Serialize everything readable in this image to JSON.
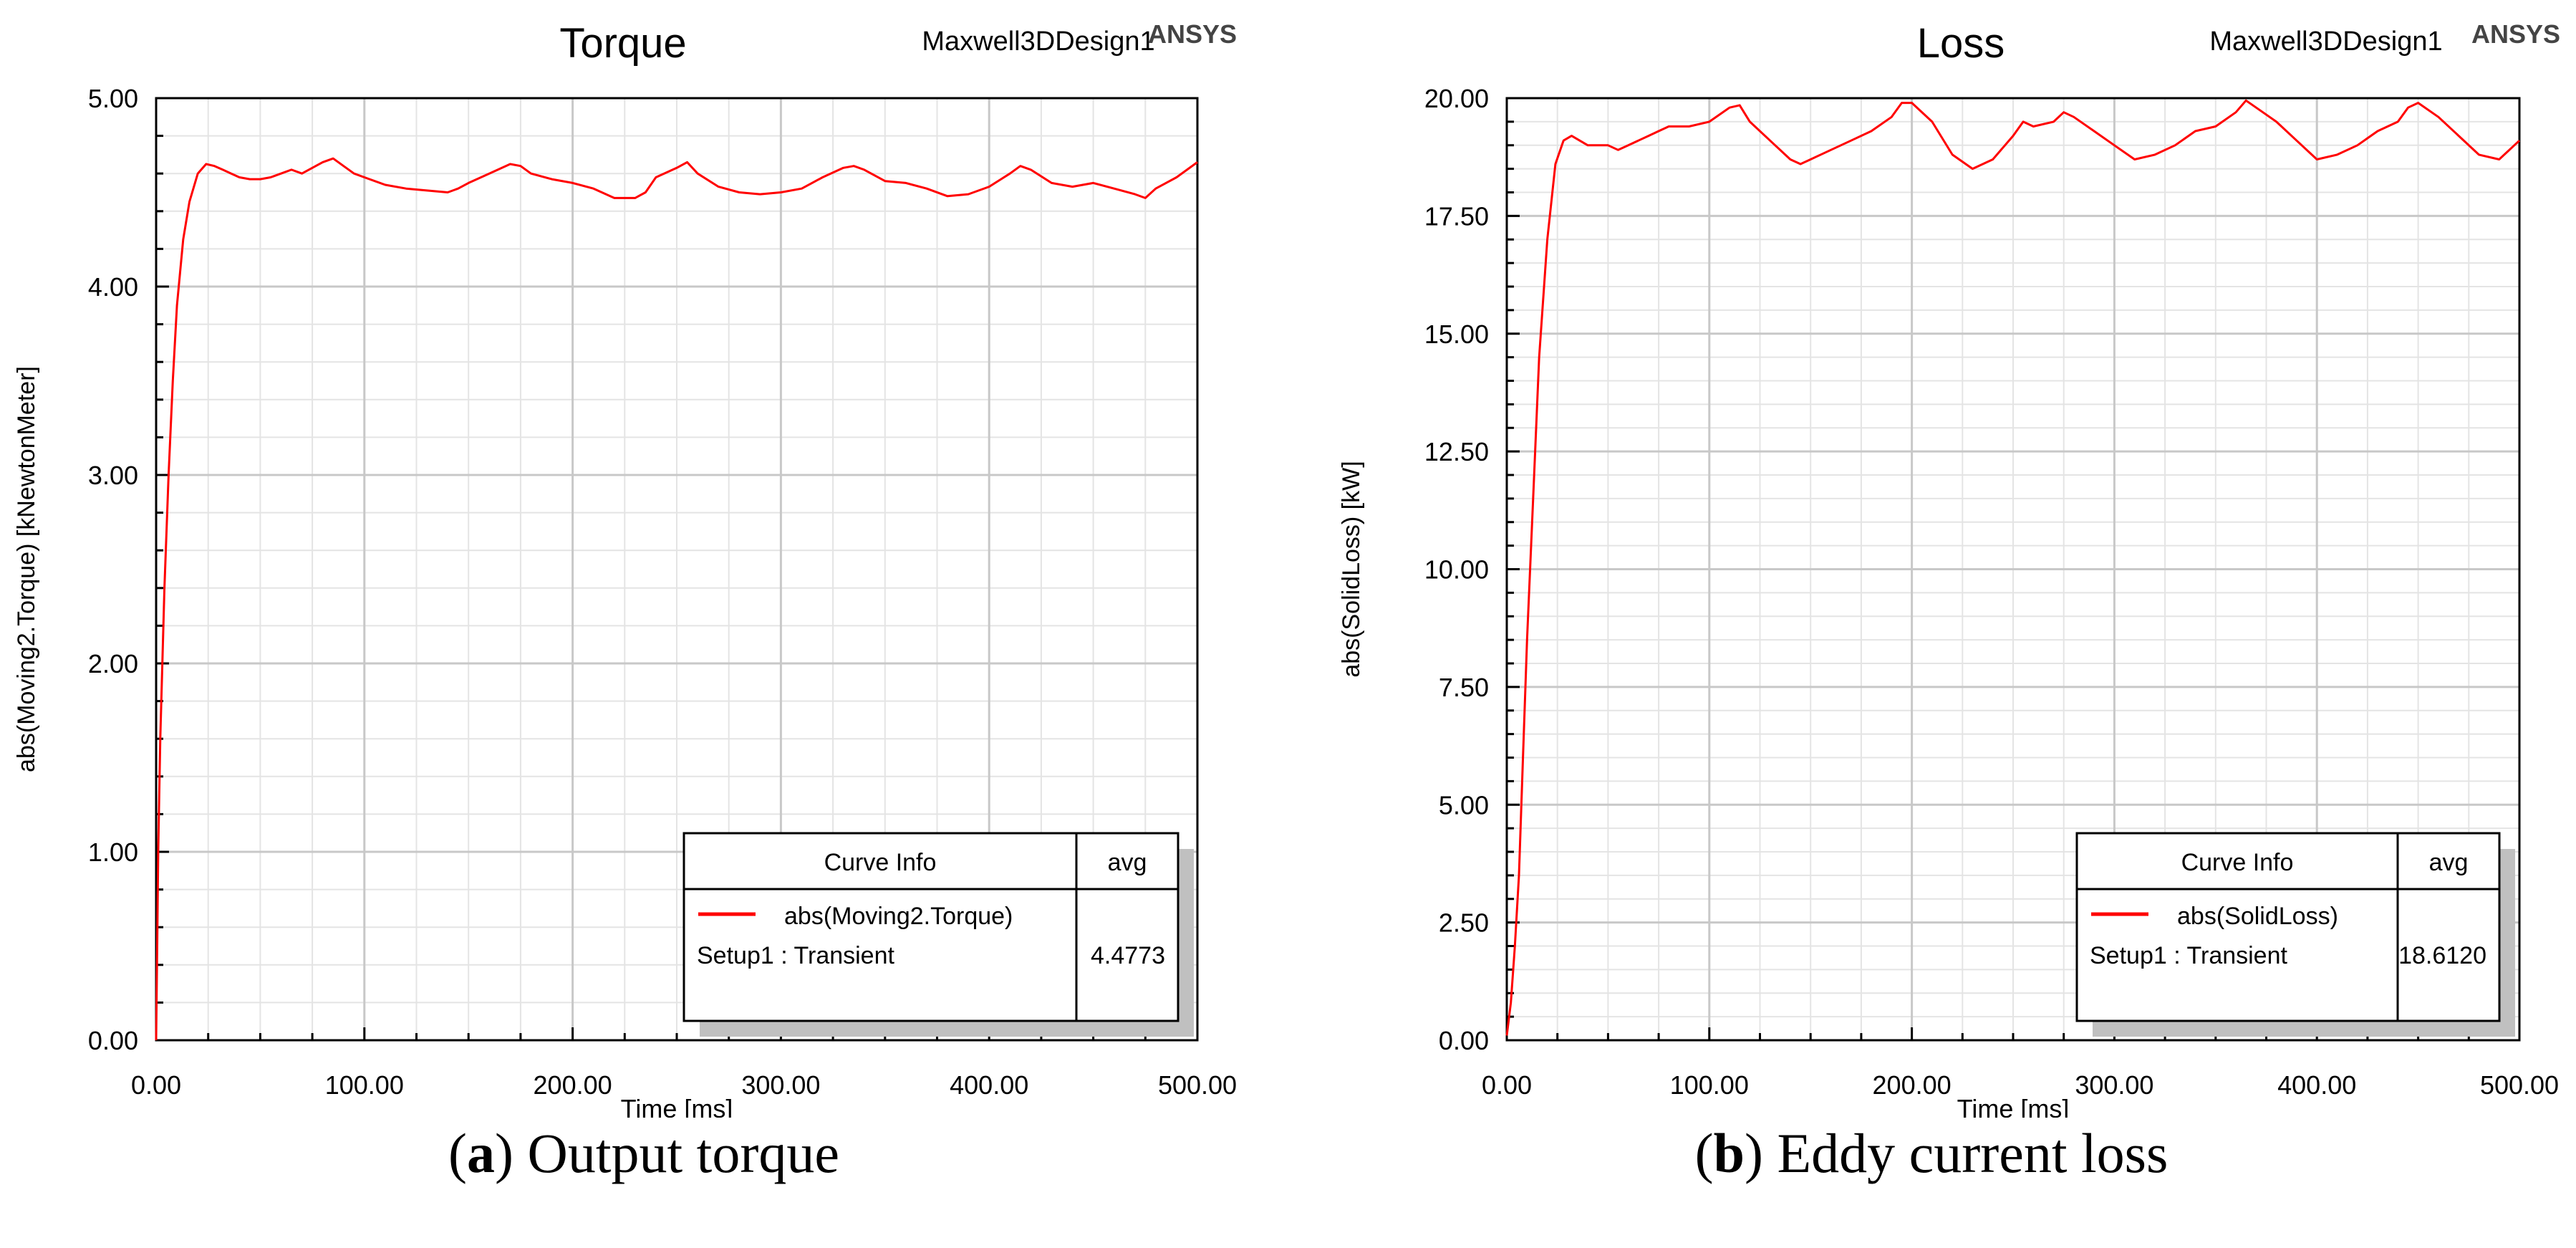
{
  "chart_data": [
    {
      "type": "line",
      "title": "Torque",
      "design_label": "Maxwell3DDesign1",
      "brand": "ANSYS",
      "xlabel": "Time [ms]",
      "ylabel": "abs(Moving2.Torque) [kNewtonMeter]",
      "xlim": [
        0,
        500
      ],
      "ylim": [
        0,
        5
      ],
      "x_ticks": [
        "0.00",
        "100.00",
        "200.00",
        "300.00",
        "400.00",
        "500.00"
      ],
      "y_ticks": [
        "0.00",
        "1.00",
        "2.00",
        "3.00",
        "4.00",
        "5.00"
      ],
      "grid": true,
      "legend_position": "bottom-right",
      "legend": {
        "header_label": "Curve Info",
        "header_value": "avg",
        "entry_name": "abs(Moving2.Torque)",
        "setup_label": "Setup1 : Transient",
        "avg_value": "4.4773"
      },
      "series_color": "#ff0000",
      "series": [
        {
          "name": "abs(Moving2.Torque)",
          "x": [
            0,
            0.5,
            1,
            2,
            4,
            6,
            8,
            10,
            13,
            16,
            20,
            24,
            28,
            32,
            36,
            40,
            45,
            50,
            55,
            60,
            65,
            70,
            75,
            80,
            85,
            90,
            95,
            100,
            110,
            120,
            130,
            140,
            145,
            150,
            160,
            170,
            175,
            180,
            190,
            200,
            210,
            220,
            230,
            235,
            240,
            250,
            255,
            260,
            270,
            280,
            290,
            300,
            310,
            320,
            330,
            335,
            340,
            350,
            360,
            370,
            380,
            390,
            400,
            410,
            415,
            420,
            430,
            440,
            450,
            460,
            470,
            475,
            480,
            490,
            500
          ],
          "values": [
            0,
            0.5,
            1.0,
            1.6,
            2.4,
            3.0,
            3.5,
            3.9,
            4.25,
            4.45,
            4.6,
            4.65,
            4.64,
            4.62,
            4.6,
            4.58,
            4.57,
            4.57,
            4.58,
            4.6,
            4.62,
            4.6,
            4.63,
            4.66,
            4.68,
            4.64,
            4.6,
            4.58,
            4.54,
            4.52,
            4.51,
            4.5,
            4.52,
            4.55,
            4.6,
            4.65,
            4.64,
            4.6,
            4.57,
            4.55,
            4.52,
            4.47,
            4.47,
            4.5,
            4.58,
            4.63,
            4.66,
            4.6,
            4.53,
            4.5,
            4.49,
            4.5,
            4.52,
            4.58,
            4.63,
            4.64,
            4.62,
            4.56,
            4.55,
            4.52,
            4.48,
            4.49,
            4.53,
            4.6,
            4.64,
            4.62,
            4.55,
            4.53,
            4.55,
            4.52,
            4.49,
            4.47,
            4.52,
            4.58,
            4.66
          ]
        }
      ]
    },
    {
      "type": "line",
      "title": "Loss",
      "design_label": "Maxwell3DDesign1",
      "brand": "ANSYS",
      "xlabel": "Time [ms]",
      "ylabel": "abs(SolidLoss) [kW]",
      "xlim": [
        0,
        500
      ],
      "ylim": [
        0,
        20
      ],
      "x_ticks": [
        "0.00",
        "100.00",
        "200.00",
        "300.00",
        "400.00",
        "500.00"
      ],
      "y_ticks": [
        "0.00",
        "2.50",
        "5.00",
        "7.50",
        "10.00",
        "12.50",
        "15.00",
        "17.50",
        "20.00"
      ],
      "grid": true,
      "legend_position": "bottom-right",
      "legend": {
        "header_label": "Curve Info",
        "header_value": "avg",
        "entry_name": "abs(SolidLoss)",
        "setup_label": "Setup1 : Transient",
        "avg_value": "18.6120"
      },
      "series_color": "#ff0000",
      "series": [
        {
          "name": "abs(SolidLoss)",
          "x": [
            0,
            2,
            4,
            6,
            8,
            10,
            13,
            16,
            20,
            24,
            28,
            32,
            36,
            40,
            45,
            50,
            55,
            60,
            65,
            70,
            75,
            80,
            90,
            100,
            110,
            115,
            120,
            130,
            140,
            145,
            150,
            160,
            170,
            180,
            190,
            195,
            200,
            210,
            220,
            230,
            240,
            250,
            255,
            260,
            270,
            275,
            280,
            290,
            300,
            310,
            320,
            330,
            340,
            350,
            360,
            365,
            370,
            380,
            390,
            400,
            410,
            420,
            430,
            440,
            445,
            450,
            460,
            470,
            480,
            490,
            500
          ],
          "values": [
            0.1,
            0.8,
            2.0,
            3.5,
            6.0,
            8.5,
            11.5,
            14.5,
            17.0,
            18.6,
            19.1,
            19.2,
            19.1,
            19.0,
            19.0,
            19.0,
            18.9,
            19.0,
            19.1,
            19.2,
            19.3,
            19.4,
            19.4,
            19.5,
            19.8,
            19.85,
            19.5,
            19.1,
            18.7,
            18.6,
            18.7,
            18.9,
            19.1,
            19.3,
            19.6,
            19.9,
            19.9,
            19.5,
            18.8,
            18.5,
            18.7,
            19.2,
            19.5,
            19.4,
            19.5,
            19.7,
            19.6,
            19.3,
            19.0,
            18.7,
            18.8,
            19.0,
            19.3,
            19.4,
            19.7,
            19.95,
            19.8,
            19.5,
            19.1,
            18.7,
            18.8,
            19.0,
            19.3,
            19.5,
            19.8,
            19.9,
            19.6,
            19.2,
            18.8,
            18.7,
            19.1
          ]
        }
      ]
    }
  ],
  "captions": [
    {
      "letter": "a",
      "text": "Output torque"
    },
    {
      "letter": "b",
      "text": "Eddy current loss"
    }
  ],
  "captions_paren_open": "(",
  "captions_paren_close": ")"
}
